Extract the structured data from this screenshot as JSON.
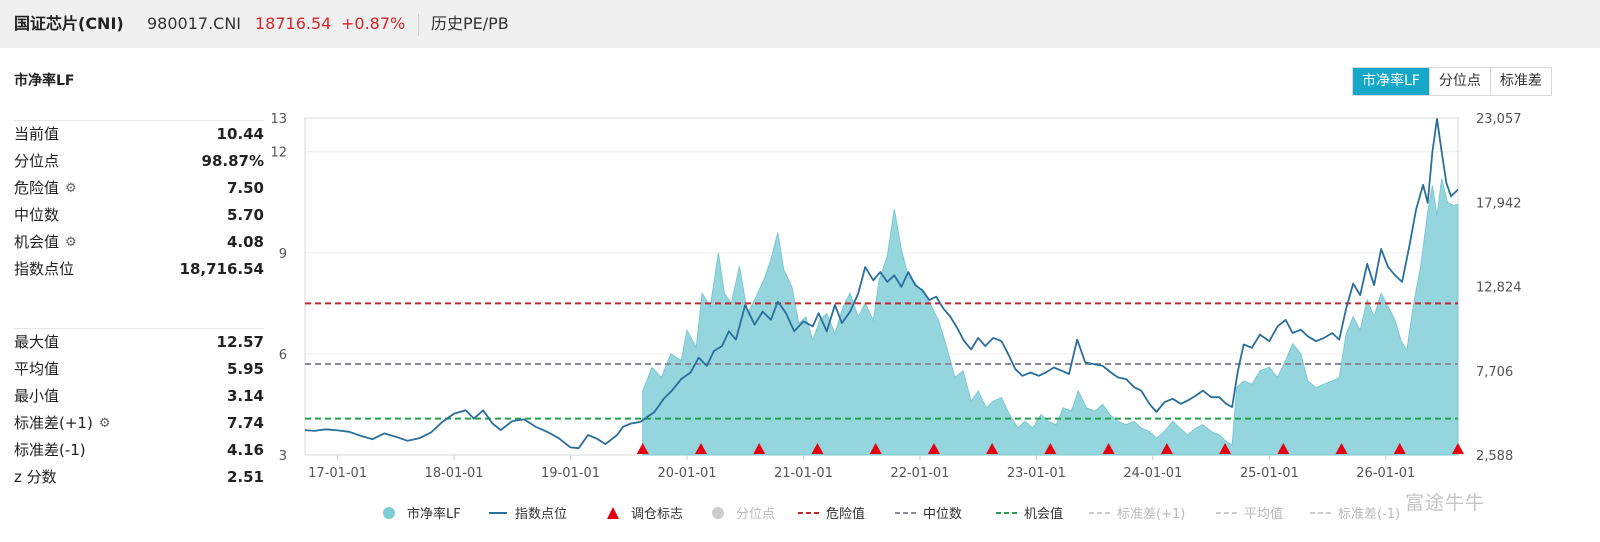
{
  "header": {
    "name": "国证芯片(CNI)",
    "code": "980017.CNI",
    "price": "18716.54",
    "change": "+0.87%",
    "link": "历史PE/PB"
  },
  "section_title": "市净率LF",
  "tabs": [
    {
      "label": "市净率LF",
      "active": true
    },
    {
      "label": "分位点",
      "active": false
    },
    {
      "label": "标准差",
      "active": false
    }
  ],
  "stats_top": [
    {
      "label": "当前值",
      "value": "10.44",
      "gear": false
    },
    {
      "label": "分位点",
      "value": "98.87%",
      "gear": false
    },
    {
      "label": "危险值",
      "value": "7.50",
      "gear": true
    },
    {
      "label": "中位数",
      "value": "5.70",
      "gear": false
    },
    {
      "label": "机会值",
      "value": "4.08",
      "gear": true
    },
    {
      "label": "指数点位",
      "value": "18,716.54",
      "gear": false
    }
  ],
  "stats_bottom": [
    {
      "label": "最大值",
      "value": "12.57",
      "gear": false
    },
    {
      "label": "平均值",
      "value": "5.95",
      "gear": false
    },
    {
      "label": "最小值",
      "value": "3.14",
      "gear": false
    },
    {
      "label": "标准差(+1)",
      "value": "7.74",
      "gear": true
    },
    {
      "label": "标准差(-1)",
      "value": "4.16",
      "gear": false
    },
    {
      "label": "z 分数",
      "value": "2.51",
      "gear": false
    }
  ],
  "watermark": "富途牛牛",
  "chart_data": {
    "type": "area",
    "x_ticks": [
      "17-01-01",
      "18-01-01",
      "19-01-01",
      "20-01-01",
      "21-01-01",
      "22-01-01",
      "23-01-01",
      "24-01-01",
      "25-01-01",
      "26-01-01"
    ],
    "y_left_ticks": [
      3,
      6,
      9,
      12,
      13
    ],
    "y_left_range": [
      3,
      13
    ],
    "y_right_ticks": [
      "2,588",
      "7,706",
      "12,824",
      "17,942",
      "23,057"
    ],
    "y_right_range": [
      2588,
      23057
    ],
    "x_range": [
      2016.72,
      2026.62
    ],
    "legend": [
      {
        "label": "市净率LF",
        "type": "area",
        "color": "#7ccdd6",
        "active": true
      },
      {
        "label": "指数点位",
        "type": "line",
        "color": "#2a6f9b",
        "active": true
      },
      {
        "label": "调仓标志",
        "type": "triangle",
        "color": "#e60012",
        "active": true
      },
      {
        "label": "分位点",
        "type": "dot",
        "color": "#cccccc",
        "active": false
      },
      {
        "label": "危险值",
        "type": "dash",
        "color": "#c2272d",
        "active": true
      },
      {
        "label": "中位数",
        "type": "dash",
        "color": "#8a8a9a",
        "active": true
      },
      {
        "label": "机会值",
        "type": "dash",
        "color": "#23a24d",
        "active": true
      },
      {
        "label": "标准差(+1)",
        "type": "dash",
        "color": "#cccccc",
        "active": false
      },
      {
        "label": "平均值",
        "type": "dash",
        "color": "#cccccc",
        "active": false
      },
      {
        "label": "标准差(-1)",
        "type": "dash",
        "color": "#cccccc",
        "active": false
      }
    ],
    "reference_lines": {
      "danger": 7.5,
      "median": 5.7,
      "opportunity": 4.08
    },
    "pb_series": [
      [
        2019.62,
        4.9
      ],
      [
        2019.7,
        5.6
      ],
      [
        2019.78,
        5.3
      ],
      [
        2019.86,
        6.0
      ],
      [
        2019.95,
        5.8
      ],
      [
        2020.0,
        6.7
      ],
      [
        2020.08,
        6.2
      ],
      [
        2020.13,
        7.8
      ],
      [
        2020.2,
        7.4
      ],
      [
        2020.27,
        9.0
      ],
      [
        2020.32,
        7.8
      ],
      [
        2020.38,
        7.5
      ],
      [
        2020.45,
        8.6
      ],
      [
        2020.52,
        7.2
      ],
      [
        2020.58,
        7.6
      ],
      [
        2020.66,
        8.2
      ],
      [
        2020.72,
        8.8
      ],
      [
        2020.78,
        9.6
      ],
      [
        2020.83,
        8.5
      ],
      [
        2020.9,
        8.0
      ],
      [
        2020.96,
        6.9
      ],
      [
        2021.02,
        7.1
      ],
      [
        2021.08,
        6.4
      ],
      [
        2021.14,
        7.0
      ],
      [
        2021.2,
        7.2
      ],
      [
        2021.27,
        6.6
      ],
      [
        2021.34,
        7.4
      ],
      [
        2021.4,
        7.8
      ],
      [
        2021.47,
        7.1
      ],
      [
        2021.53,
        7.5
      ],
      [
        2021.6,
        7.0
      ],
      [
        2021.65,
        8.2
      ],
      [
        2021.72,
        8.9
      ],
      [
        2021.78,
        10.3
      ],
      [
        2021.84,
        9.1
      ],
      [
        2021.9,
        8.3
      ],
      [
        2021.96,
        8.1
      ],
      [
        2022.03,
        7.8
      ],
      [
        2022.1,
        7.4
      ],
      [
        2022.16,
        7.0
      ],
      [
        2022.23,
        6.2
      ],
      [
        2022.3,
        5.3
      ],
      [
        2022.37,
        5.5
      ],
      [
        2022.44,
        4.6
      ],
      [
        2022.5,
        4.9
      ],
      [
        2022.57,
        4.4
      ],
      [
        2022.63,
        4.6
      ],
      [
        2022.7,
        4.7
      ],
      [
        2022.77,
        4.2
      ],
      [
        2022.84,
        3.8
      ],
      [
        2022.9,
        4.0
      ],
      [
        2022.97,
        3.8
      ],
      [
        2023.04,
        4.2
      ],
      [
        2023.1,
        4.0
      ],
      [
        2023.17,
        3.9
      ],
      [
        2023.23,
        4.4
      ],
      [
        2023.3,
        4.3
      ],
      [
        2023.36,
        4.9
      ],
      [
        2023.43,
        4.4
      ],
      [
        2023.5,
        4.3
      ],
      [
        2023.57,
        4.5
      ],
      [
        2023.63,
        4.2
      ],
      [
        2023.7,
        4.0
      ],
      [
        2023.77,
        3.9
      ],
      [
        2023.84,
        4.0
      ],
      [
        2023.9,
        3.8
      ],
      [
        2023.97,
        3.7
      ],
      [
        2024.03,
        3.5
      ],
      [
        2024.1,
        3.7
      ],
      [
        2024.17,
        4.0
      ],
      [
        2024.23,
        3.8
      ],
      [
        2024.3,
        3.6
      ],
      [
        2024.37,
        3.8
      ],
      [
        2024.43,
        3.9
      ],
      [
        2024.5,
        3.7
      ],
      [
        2024.57,
        3.6
      ],
      [
        2024.63,
        3.4
      ],
      [
        2024.68,
        3.3
      ],
      [
        2024.72,
        5.0
      ],
      [
        2024.78,
        5.2
      ],
      [
        2024.85,
        5.1
      ],
      [
        2024.92,
        5.5
      ],
      [
        2025.0,
        5.6
      ],
      [
        2025.07,
        5.3
      ],
      [
        2025.14,
        5.8
      ],
      [
        2025.2,
        6.3
      ],
      [
        2025.27,
        6.0
      ],
      [
        2025.33,
        5.2
      ],
      [
        2025.4,
        5.0
      ],
      [
        2025.47,
        5.1
      ],
      [
        2025.54,
        5.2
      ],
      [
        2025.6,
        5.3
      ],
      [
        2025.66,
        6.6
      ],
      [
        2025.72,
        7.1
      ],
      [
        2025.78,
        6.7
      ],
      [
        2025.84,
        7.6
      ],
      [
        2025.9,
        7.1
      ],
      [
        2025.96,
        7.8
      ],
      [
        2026.02,
        7.4
      ],
      [
        2026.08,
        7.0
      ],
      [
        2026.13,
        6.4
      ],
      [
        2026.18,
        6.1
      ],
      [
        2026.24,
        7.5
      ],
      [
        2026.3,
        8.6
      ],
      [
        2026.36,
        10.2
      ],
      [
        2026.4,
        11.0
      ],
      [
        2026.44,
        10.1
      ],
      [
        2026.48,
        11.2
      ],
      [
        2026.53,
        10.5
      ],
      [
        2026.58,
        10.4
      ],
      [
        2026.62,
        10.44
      ]
    ],
    "index_series": [
      [
        2016.72,
        4100
      ],
      [
        2016.8,
        4050
      ],
      [
        2016.9,
        4150
      ],
      [
        2017.0,
        4080
      ],
      [
        2017.1,
        4000
      ],
      [
        2017.2,
        3750
      ],
      [
        2017.3,
        3550
      ],
      [
        2017.4,
        3900
      ],
      [
        2017.5,
        3700
      ],
      [
        2017.6,
        3450
      ],
      [
        2017.7,
        3600
      ],
      [
        2017.8,
        3950
      ],
      [
        2017.9,
        4600
      ],
      [
        2018.0,
        5100
      ],
      [
        2018.1,
        5300
      ],
      [
        2018.17,
        4800
      ],
      [
        2018.25,
        5300
      ],
      [
        2018.33,
        4500
      ],
      [
        2018.4,
        4100
      ],
      [
        2018.5,
        4650
      ],
      [
        2018.6,
        4750
      ],
      [
        2018.7,
        4300
      ],
      [
        2018.8,
        4000
      ],
      [
        2018.9,
        3600
      ],
      [
        2019.0,
        3050
      ],
      [
        2019.07,
        3000
      ],
      [
        2019.15,
        3800
      ],
      [
        2019.22,
        3600
      ],
      [
        2019.3,
        3250
      ],
      [
        2019.4,
        3800
      ],
      [
        2019.45,
        4300
      ],
      [
        2019.52,
        4500
      ],
      [
        2019.6,
        4600
      ],
      [
        2019.66,
        4900
      ],
      [
        2019.72,
        5200
      ],
      [
        2019.8,
        6000
      ],
      [
        2019.87,
        6500
      ],
      [
        2019.95,
        7200
      ],
      [
        2020.03,
        7600
      ],
      [
        2020.1,
        8500
      ],
      [
        2020.17,
        8000
      ],
      [
        2020.23,
        8900
      ],
      [
        2020.3,
        9200
      ],
      [
        2020.36,
        10100
      ],
      [
        2020.42,
        9600
      ],
      [
        2020.5,
        11700
      ],
      [
        2020.58,
        10500
      ],
      [
        2020.65,
        11300
      ],
      [
        2020.72,
        10800
      ],
      [
        2020.78,
        11900
      ],
      [
        2020.85,
        11200
      ],
      [
        2020.92,
        10100
      ],
      [
        2021.0,
        10700
      ],
      [
        2021.08,
        10400
      ],
      [
        2021.13,
        11200
      ],
      [
        2021.2,
        10100
      ],
      [
        2021.27,
        11700
      ],
      [
        2021.33,
        10600
      ],
      [
        2021.4,
        11300
      ],
      [
        2021.47,
        12400
      ],
      [
        2021.53,
        14000
      ],
      [
        2021.6,
        13200
      ],
      [
        2021.66,
        13700
      ],
      [
        2021.72,
        13100
      ],
      [
        2021.78,
        13500
      ],
      [
        2021.84,
        12800
      ],
      [
        2021.9,
        13700
      ],
      [
        2021.96,
        12900
      ],
      [
        2022.02,
        12600
      ],
      [
        2022.08,
        12000
      ],
      [
        2022.14,
        12200
      ],
      [
        2022.2,
        11500
      ],
      [
        2022.26,
        11000
      ],
      [
        2022.32,
        10300
      ],
      [
        2022.38,
        9500
      ],
      [
        2022.44,
        9000
      ],
      [
        2022.5,
        9700
      ],
      [
        2022.56,
        9200
      ],
      [
        2022.63,
        9700
      ],
      [
        2022.7,
        9500
      ],
      [
        2022.76,
        8700
      ],
      [
        2022.82,
        7800
      ],
      [
        2022.88,
        7400
      ],
      [
        2022.95,
        7600
      ],
      [
        2023.02,
        7400
      ],
      [
        2023.08,
        7600
      ],
      [
        2023.15,
        7900
      ],
      [
        2023.22,
        7700
      ],
      [
        2023.28,
        7500
      ],
      [
        2023.35,
        9600
      ],
      [
        2023.42,
        8200
      ],
      [
        2023.5,
        8100
      ],
      [
        2023.57,
        8000
      ],
      [
        2023.64,
        7600
      ],
      [
        2023.7,
        7300
      ],
      [
        2023.77,
        7200
      ],
      [
        2023.84,
        6700
      ],
      [
        2023.9,
        6500
      ],
      [
        2023.97,
        5700
      ],
      [
        2024.03,
        5200
      ],
      [
        2024.1,
        5800
      ],
      [
        2024.17,
        6000
      ],
      [
        2024.24,
        5700
      ],
      [
        2024.3,
        5900
      ],
      [
        2024.37,
        6200
      ],
      [
        2024.43,
        6500
      ],
      [
        2024.5,
        6100
      ],
      [
        2024.57,
        6100
      ],
      [
        2024.63,
        5700
      ],
      [
        2024.68,
        5500
      ],
      [
        2024.73,
        7700
      ],
      [
        2024.78,
        9300
      ],
      [
        2024.85,
        9100
      ],
      [
        2024.92,
        9900
      ],
      [
        2025.0,
        9500
      ],
      [
        2025.07,
        10400
      ],
      [
        2025.14,
        10800
      ],
      [
        2025.2,
        10000
      ],
      [
        2025.27,
        10200
      ],
      [
        2025.33,
        9800
      ],
      [
        2025.4,
        9500
      ],
      [
        2025.47,
        9700
      ],
      [
        2025.54,
        10000
      ],
      [
        2025.6,
        9600
      ],
      [
        2025.66,
        11500
      ],
      [
        2025.72,
        13000
      ],
      [
        2025.78,
        12300
      ],
      [
        2025.84,
        14200
      ],
      [
        2025.9,
        12900
      ],
      [
        2025.96,
        15100
      ],
      [
        2026.02,
        14000
      ],
      [
        2026.08,
        13500
      ],
      [
        2026.14,
        13100
      ],
      [
        2026.2,
        15200
      ],
      [
        2026.26,
        17500
      ],
      [
        2026.32,
        19000
      ],
      [
        2026.36,
        17900
      ],
      [
        2026.4,
        21000
      ],
      [
        2026.44,
        23000
      ],
      [
        2026.48,
        21000
      ],
      [
        2026.52,
        19100
      ],
      [
        2026.56,
        18300
      ],
      [
        2026.62,
        18716
      ]
    ],
    "rebalance_marks": [
      2019.62,
      2020.12,
      2020.62,
      2021.12,
      2021.62,
      2022.12,
      2022.62,
      2023.12,
      2023.62,
      2024.12,
      2024.62,
      2025.12,
      2025.62,
      2026.12,
      2026.62
    ]
  }
}
